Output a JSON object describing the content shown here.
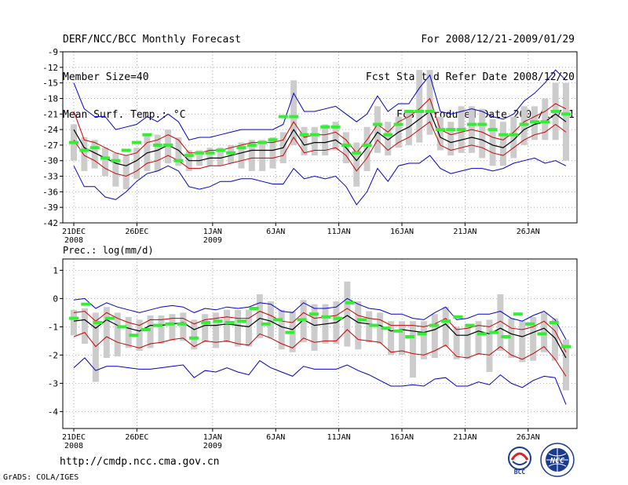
{
  "header": {
    "line1_left": "DERF/NCC/BCC Monthly Forecast",
    "line2_left": "Member Size=40",
    "line3_left": "Mean Surf. Temp.: °C",
    "line1_right": "For 2008/12/21-2009/01/29",
    "line2_right": "Fcst Started Refer Date 2008/12/20",
    "line3_right": "Fcst Produced Date 2008/12/21"
  },
  "footer": {
    "url": "http://cmdp.ncc.cma.gov.cn",
    "grads": "GrADS: COLA/IGES",
    "logo_bcc_text": "BCC",
    "logo_ncc_text": "NCC"
  },
  "colors": {
    "ensemble_mean": "#000000",
    "inner_spread": "#cc0000",
    "outer_spread": "#0000cc",
    "box": "#cccccc",
    "marker": "#33ee33",
    "grid": "#999999"
  },
  "chart_data": [
    {
      "type": "line",
      "id": "temperature",
      "ylabel": "",
      "ylim": [
        -42,
        -9
      ],
      "yticks": [
        -42,
        -39,
        -36,
        -33,
        -30,
        -27,
        -24,
        -21,
        -18,
        -15,
        -12,
        -9
      ],
      "xlim": [
        0.5,
        40.5
      ],
      "x_ticks": [
        {
          "day": 1,
          "label": "21DEC",
          "sub": "2008"
        },
        {
          "day": 6,
          "label": "26DEC",
          "sub": ""
        },
        {
          "day": 12,
          "label": "1JAN",
          "sub": "2009"
        },
        {
          "day": 17,
          "label": "6JAN",
          "sub": ""
        },
        {
          "day": 22,
          "label": "11JAN",
          "sub": ""
        },
        {
          "day": 27,
          "label": "16JAN",
          "sub": ""
        },
        {
          "day": 32,
          "label": "21JAN",
          "sub": ""
        },
        {
          "day": 37,
          "label": "26JAN",
          "sub": ""
        }
      ],
      "series": [
        {
          "name": "ensemble mean",
          "role": "mean",
          "values": [
            -24,
            -27.5,
            -28.5,
            -29.5,
            -30.5,
            -31,
            -30,
            -28.5,
            -28,
            -27,
            -28,
            -30,
            -30,
            -29.5,
            -29.5,
            -29,
            -28.5,
            -28,
            -28,
            -28,
            -27.5,
            -24,
            -27,
            -26.5,
            -26.5,
            -26,
            -27.5,
            -30,
            -27.5,
            -24.5,
            -26,
            -24.5,
            -23.5,
            -22,
            -20.5,
            -25.5,
            -26.5,
            -26,
            -25.5,
            -26,
            -27,
            -27.5,
            -26,
            -24,
            -23,
            -22.5,
            -21,
            -22.5
          ]
        },
        {
          "name": "upper inner envelope",
          "role": "inner",
          "values": [
            -20.5,
            -26,
            -26.5,
            -27.5,
            -28.5,
            -29,
            -28.5,
            -26.5,
            -26,
            -25,
            -26,
            -28.5,
            -28.5,
            -28,
            -28,
            -27.5,
            -27,
            -26.5,
            -26.5,
            -26.5,
            -26,
            -22.5,
            -25.5,
            -25,
            -25,
            -24.5,
            -26,
            -28.5,
            -26,
            -23,
            -24.5,
            -22.5,
            -21.5,
            -20,
            -18,
            -24,
            -25,
            -24.5,
            -24,
            -24.5,
            -25.5,
            -26,
            -24.5,
            -22.5,
            -21.5,
            -20.5,
            -19,
            -20
          ]
        },
        {
          "name": "lower inner envelope",
          "role": "inner",
          "values": [
            -26,
            -29,
            -30,
            -31.5,
            -32.5,
            -33,
            -32,
            -30.5,
            -30,
            -29,
            -30,
            -31.5,
            -31.5,
            -31,
            -31,
            -30.5,
            -30,
            -29.5,
            -29.5,
            -29.5,
            -29,
            -25.5,
            -28.5,
            -28,
            -28,
            -27.5,
            -29,
            -32,
            -29.5,
            -26,
            -28,
            -26.5,
            -25.5,
            -24,
            -22.5,
            -27,
            -28,
            -27.5,
            -27,
            -27.5,
            -28.5,
            -29,
            -27.5,
            -26,
            -25,
            -24.5,
            -23,
            -24.5
          ]
        },
        {
          "name": "upper outer envelope",
          "role": "outer",
          "values": [
            -15,
            -20,
            -21.5,
            -21.5,
            -24,
            -23.5,
            -23,
            -21.5,
            -22.5,
            -21,
            -22.5,
            -26,
            -25.5,
            -25.5,
            -25,
            -24.5,
            -24,
            -24,
            -24,
            -24,
            -23,
            -17,
            -20.5,
            -20.5,
            -20,
            -19.5,
            -21,
            -22.5,
            -21,
            -17.5,
            -20.5,
            -19,
            -19,
            -16,
            -13.5,
            -20.5,
            -21,
            -20.5,
            -20,
            -20.5,
            -21.5,
            -22,
            -21,
            -18.5,
            -17,
            -15,
            -12.5,
            -14.5
          ]
        },
        {
          "name": "lower outer envelope",
          "role": "outer",
          "values": [
            -31,
            -35,
            -35,
            -37,
            -37.5,
            -36,
            -34,
            -32.5,
            -32,
            -31,
            -32,
            -35,
            -35.5,
            -35,
            -34,
            -34,
            -33.5,
            -33.5,
            -34,
            -34.5,
            -34.5,
            -31.5,
            -33.5,
            -33,
            -33.5,
            -33,
            -35,
            -38.5,
            -36,
            -31.5,
            -34,
            -31,
            -30.5,
            -30.5,
            -29,
            -31.5,
            -32.5,
            -32,
            -31.5,
            -31.5,
            -32,
            -31.5,
            -30.5,
            -30,
            -29.5,
            -30.5,
            -30,
            -31
          ]
        },
        {
          "name": "box upper",
          "role": "box_hi",
          "values": [
            -23,
            -25.5,
            -26,
            -27.5,
            -28.5,
            -29,
            -27.5,
            -25,
            -25,
            -24,
            -25.5,
            -28,
            -28,
            -27.5,
            -27.5,
            -27,
            -26.5,
            -26,
            -26,
            -25.5,
            -24.5,
            -14.5,
            -23.5,
            -23.5,
            -23,
            -22.5,
            -24.5,
            -26.5,
            -23.5,
            -19.5,
            -22.5,
            -21.5,
            -20.5,
            -12.5,
            -12.5,
            -21.5,
            -22.5,
            -19.5,
            -19.5,
            -20,
            -22,
            -22.5,
            -21.5,
            -19.5,
            -19.5,
            -18,
            -15,
            -15
          ]
        },
        {
          "name": "box lower",
          "role": "box_lo",
          "values": [
            -30,
            -32,
            -31.5,
            -33,
            -35,
            -35.5,
            -33.5,
            -32,
            -32,
            -30.5,
            -31,
            -32,
            -31,
            -31,
            -31,
            -30.5,
            -31.5,
            -32,
            -32,
            -31.5,
            -30.5,
            -27,
            -29,
            -29,
            -29,
            -28,
            -30.5,
            -35,
            -32,
            -28.5,
            -29,
            -27.5,
            -27,
            -26.5,
            -25,
            -28,
            -29,
            -28.5,
            -28.5,
            -29.5,
            -31,
            -31,
            -29.5,
            -27,
            -26,
            -26,
            -26,
            -30
          ]
        },
        {
          "name": "observed/point marker",
          "role": "marker",
          "values": [
            -26.5,
            -28,
            -27.5,
            -29.5,
            -30,
            -28,
            -26.5,
            -25,
            -27,
            -27,
            -30,
            -29,
            -28.5,
            -28.5,
            -28,
            -28.5,
            -27.5,
            -27,
            -26.5,
            -26,
            -21.5,
            -21.5,
            -25,
            -25,
            -23.5,
            -23.5,
            -27,
            -28.5,
            -27,
            -23,
            -25,
            -23,
            -20.5,
            -20.5,
            -20.5,
            -24,
            -24,
            -24,
            -23,
            -23,
            -24,
            -25,
            -25,
            -23,
            -22.5,
            -22.5,
            -20.5,
            -21
          ]
        }
      ]
    },
    {
      "type": "line",
      "id": "precipitation",
      "ylabel": "Prec.: log(mm/d)",
      "ylim": [
        -4.6,
        1.4
      ],
      "yticks": [
        -4,
        -3,
        -2,
        -1,
        0,
        1
      ],
      "xlim": [
        0.5,
        40.5
      ],
      "x_ticks": [
        {
          "day": 1,
          "label": "21DEC",
          "sub": "2008"
        },
        {
          "day": 6,
          "label": "26DEC",
          "sub": ""
        },
        {
          "day": 12,
          "label": "1JAN",
          "sub": "2009"
        },
        {
          "day": 17,
          "label": "6JAN",
          "sub": ""
        },
        {
          "day": 22,
          "label": "11JAN",
          "sub": ""
        },
        {
          "day": 27,
          "label": "16JAN",
          "sub": ""
        },
        {
          "day": 32,
          "label": "21JAN",
          "sub": ""
        },
        {
          "day": 37,
          "label": "26JAN",
          "sub": ""
        }
      ],
      "series": [
        {
          "name": "ensemble mean",
          "role": "mean",
          "values": [
            -0.8,
            -0.75,
            -1.05,
            -0.75,
            -0.95,
            -1.05,
            -1.15,
            -0.95,
            -0.95,
            -0.9,
            -0.85,
            -1.1,
            -0.95,
            -0.95,
            -0.9,
            -0.95,
            -1.0,
            -0.7,
            -0.8,
            -1.0,
            -1.1,
            -0.75,
            -0.95,
            -0.9,
            -0.85,
            -0.6,
            -0.85,
            -0.9,
            -0.95,
            -1.15,
            -1.1,
            -1.15,
            -1.2,
            -1.1,
            -0.9,
            -1.3,
            -1.3,
            -1.15,
            -1.25,
            -1.05,
            -1.25,
            -1.35,
            -1.2,
            -1.05,
            -1.4,
            -2.1
          ]
        },
        {
          "name": "upper inner envelope",
          "role": "inner",
          "values": [
            -0.5,
            -0.45,
            -0.8,
            -0.5,
            -0.7,
            -0.85,
            -0.95,
            -0.75,
            -0.75,
            -0.7,
            -0.7,
            -0.9,
            -0.75,
            -0.7,
            -0.65,
            -0.7,
            -0.7,
            -0.45,
            -0.6,
            -0.8,
            -0.85,
            -0.5,
            -0.7,
            -0.65,
            -0.6,
            -0.35,
            -0.6,
            -0.7,
            -0.75,
            -0.95,
            -0.95,
            -0.95,
            -1.0,
            -0.9,
            -0.7,
            -1.1,
            -1.05,
            -0.95,
            -1.0,
            -0.8,
            -1.05,
            -1.1,
            -1.0,
            -0.8,
            -1.15,
            -1.9
          ]
        },
        {
          "name": "lower inner envelope",
          "role": "inner",
          "values": [
            -1.35,
            -1.2,
            -1.7,
            -1.35,
            -1.55,
            -1.65,
            -1.75,
            -1.6,
            -1.55,
            -1.45,
            -1.4,
            -1.7,
            -1.5,
            -1.55,
            -1.5,
            -1.6,
            -1.65,
            -1.25,
            -1.4,
            -1.6,
            -1.75,
            -1.4,
            -1.55,
            -1.5,
            -1.5,
            -1.1,
            -1.45,
            -1.5,
            -1.55,
            -1.9,
            -1.85,
            -1.95,
            -2.0,
            -1.85,
            -1.65,
            -2.05,
            -2.1,
            -1.95,
            -2.0,
            -1.7,
            -2.0,
            -2.15,
            -1.95,
            -1.7,
            -2.15,
            -2.75
          ]
        },
        {
          "name": "upper outer envelope",
          "role": "outer",
          "values": [
            -0.05,
            0.0,
            -0.35,
            -0.15,
            -0.3,
            -0.4,
            -0.5,
            -0.4,
            -0.3,
            -0.25,
            -0.3,
            -0.5,
            -0.35,
            -0.4,
            -0.3,
            -0.35,
            -0.3,
            -0.15,
            -0.2,
            -0.45,
            -0.5,
            -0.15,
            -0.35,
            -0.35,
            -0.3,
            0.0,
            -0.2,
            -0.35,
            -0.4,
            -0.55,
            -0.55,
            -0.7,
            -0.75,
            -0.5,
            -0.3,
            -0.75,
            -0.7,
            -0.55,
            -0.55,
            -0.45,
            -0.7,
            -0.8,
            -0.6,
            -0.45,
            -0.75,
            -1.45
          ]
        },
        {
          "name": "lower outer envelope",
          "role": "outer",
          "values": [
            -2.45,
            -2.1,
            -2.55,
            -2.4,
            -2.4,
            -2.45,
            -2.5,
            -2.5,
            -2.45,
            -2.4,
            -2.35,
            -2.8,
            -2.55,
            -2.6,
            -2.45,
            -2.6,
            -2.7,
            -2.2,
            -2.45,
            -2.6,
            -2.75,
            -2.4,
            -2.5,
            -2.5,
            -2.5,
            -2.35,
            -2.55,
            -2.7,
            -2.9,
            -3.1,
            -3.1,
            -3.05,
            -3.1,
            -2.85,
            -2.8,
            -3.1,
            -3.1,
            -2.95,
            -3.05,
            -2.7,
            -3.0,
            -3.15,
            -2.9,
            -2.75,
            -2.8,
            -3.75
          ]
        },
        {
          "name": "box upper",
          "role": "box_hi",
          "values": [
            -0.4,
            -0.35,
            -0.5,
            -0.3,
            -0.5,
            -0.65,
            -0.75,
            -0.6,
            -0.6,
            -0.55,
            -0.5,
            -0.75,
            -0.55,
            -0.5,
            -0.4,
            -0.4,
            -0.4,
            0.15,
            -0.1,
            -0.4,
            -0.45,
            -0.05,
            -0.2,
            -0.2,
            -0.1,
            0.6,
            -0.1,
            -0.45,
            -0.5,
            -0.8,
            -0.8,
            -0.8,
            -0.8,
            -0.55,
            -0.3,
            -1.0,
            -0.9,
            -0.8,
            -0.75,
            0.15,
            -0.7,
            -0.8,
            -0.65,
            -0.5,
            -0.7,
            -1.45
          ]
        },
        {
          "name": "box lower",
          "role": "box_lo",
          "values": [
            -1.3,
            -1.6,
            -2.95,
            -2.1,
            -2.05,
            -1.75,
            -1.85,
            -1.75,
            -1.6,
            -1.5,
            -1.5,
            -1.8,
            -1.55,
            -1.75,
            -1.55,
            -1.7,
            -1.7,
            -1.4,
            -1.4,
            -1.8,
            -1.9,
            -1.55,
            -1.85,
            -1.6,
            -1.6,
            -1.7,
            -1.8,
            -1.55,
            -1.6,
            -2.0,
            -2.0,
            -2.8,
            -2.15,
            -2.1,
            -1.7,
            -2.15,
            -2.15,
            -2.0,
            -2.6,
            -1.85,
            -2.1,
            -2.25,
            -2.2,
            -1.9,
            -2.2,
            -3.25
          ]
        },
        {
          "name": "observed/point marker",
          "role": "marker",
          "values": [
            -0.7,
            -0.2,
            -0.85,
            -0.7,
            -1.0,
            -1.3,
            -1.1,
            -0.95,
            -0.9,
            -0.9,
            -1.4,
            -0.85,
            -0.8,
            -0.85,
            -0.8,
            -0.35,
            -0.9,
            -0.75,
            -1.2,
            -0.75,
            -0.55,
            -0.65,
            -0.7,
            -0.15,
            -0.75,
            -0.95,
            -1.05,
            -1.15,
            -1.35,
            -1.25,
            -0.95,
            -0.8,
            -0.65,
            -0.95,
            -1.25,
            -1.2,
            -1.35,
            -0.55,
            -0.9,
            -1.25,
            -0.85,
            -1.7
          ]
        }
      ]
    }
  ]
}
